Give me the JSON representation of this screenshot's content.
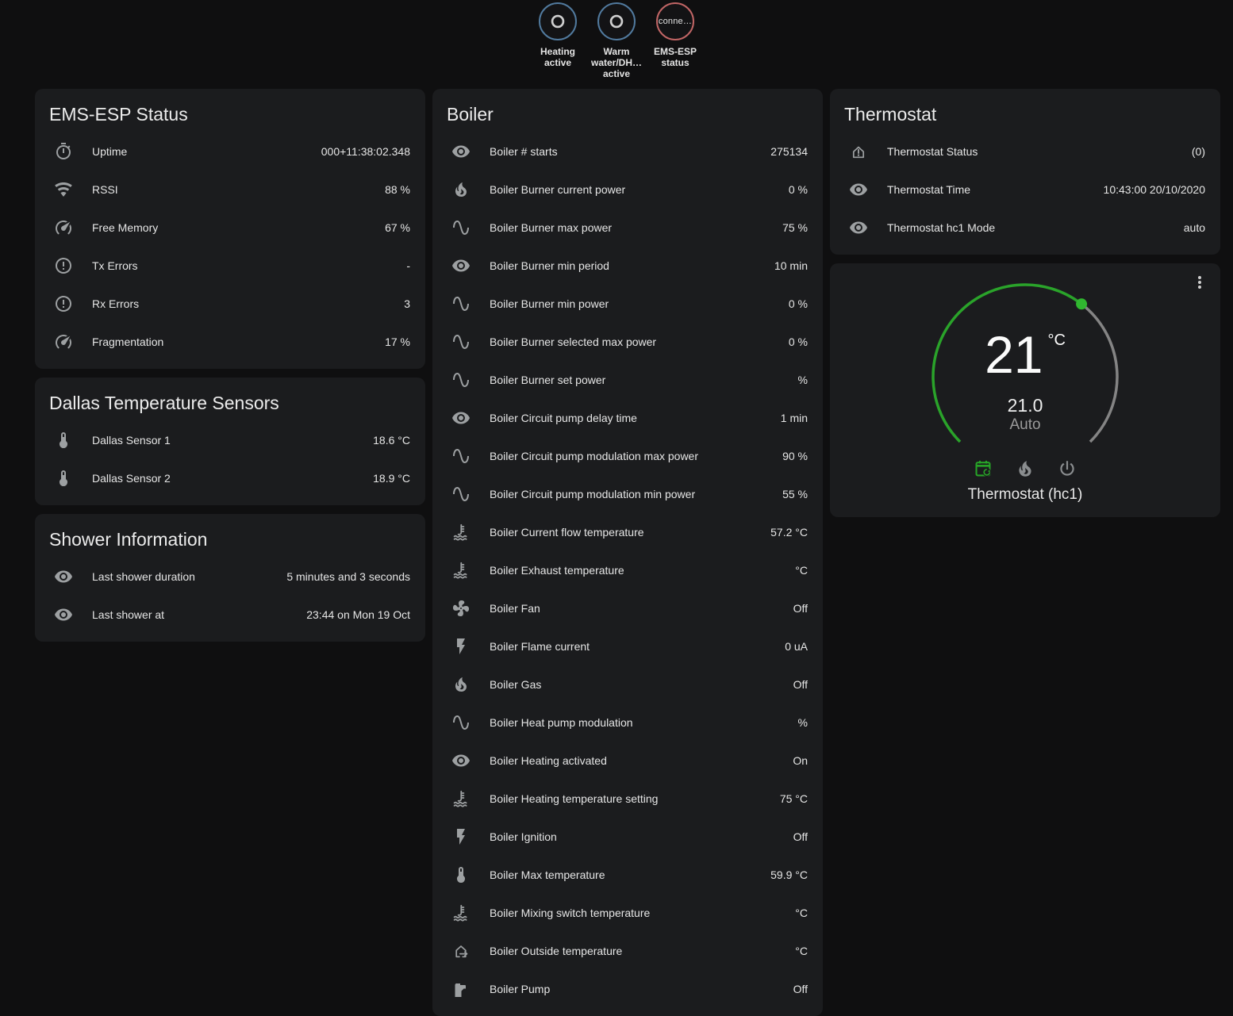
{
  "colors": {
    "badge_blue": "#517a9e",
    "badge_red": "#c06565",
    "arc_green": "#2aa32a",
    "handle_green": "#30b730",
    "track_gray": "#848484",
    "mode_active_green": "#27a427",
    "icon_gray": "#9da0a2"
  },
  "badges": [
    {
      "id": "heating-active",
      "icon": "ring",
      "border": "#517a9e",
      "label_lines": [
        "Heating",
        "active"
      ]
    },
    {
      "id": "warm-water-active",
      "icon": "ring",
      "border": "#517a9e",
      "label_lines": [
        "Warm",
        "water/DH…",
        "active"
      ]
    },
    {
      "id": "ems-esp-status",
      "text": "conne…",
      "border": "#c06565",
      "label_lines": [
        "EMS-ESP",
        "status"
      ]
    }
  ],
  "cards": {
    "ems": {
      "title": "EMS-ESP Status",
      "rows": [
        {
          "icon": "timer",
          "label": "Uptime",
          "value": "000+11:38:02.348"
        },
        {
          "icon": "wifi",
          "label": "RSSI",
          "value": "88 %"
        },
        {
          "icon": "gauge",
          "label": "Free Memory",
          "value": "67 %"
        },
        {
          "icon": "alert-circle",
          "label": "Tx Errors",
          "value": "-"
        },
        {
          "icon": "alert-circle",
          "label": "Rx Errors",
          "value": "3"
        },
        {
          "icon": "gauge",
          "label": "Fragmentation",
          "value": "17 %"
        }
      ]
    },
    "dallas": {
      "title": "Dallas Temperature Sensors",
      "rows": [
        {
          "icon": "thermometer",
          "label": "Dallas Sensor 1",
          "value": "18.6 °C"
        },
        {
          "icon": "thermometer",
          "label": "Dallas Sensor 2",
          "value": "18.9 °C"
        }
      ]
    },
    "shower": {
      "title": "Shower Information",
      "rows": [
        {
          "icon": "eye",
          "label": "Last shower duration",
          "value": "5 minutes and 3 seconds"
        },
        {
          "icon": "eye",
          "label": "Last shower at",
          "value": "23:44 on Mon 19 Oct"
        }
      ]
    },
    "boiler": {
      "title": "Boiler",
      "rows": [
        {
          "icon": "eye",
          "label": "Boiler # starts",
          "value": "275134"
        },
        {
          "icon": "fire",
          "label": "Boiler Burner current power",
          "value": "0 %"
        },
        {
          "icon": "sine-wave",
          "label": "Boiler Burner max power",
          "value": "75 %"
        },
        {
          "icon": "eye",
          "label": "Boiler Burner min period",
          "value": "10 min"
        },
        {
          "icon": "sine-wave",
          "label": "Boiler Burner min power",
          "value": "0 %"
        },
        {
          "icon": "sine-wave",
          "label": "Boiler Burner selected max power",
          "value": "0 %"
        },
        {
          "icon": "sine-wave",
          "label": "Boiler Burner set power",
          "value": "%"
        },
        {
          "icon": "eye",
          "label": "Boiler Circuit pump delay time",
          "value": "1 min"
        },
        {
          "icon": "sine-wave",
          "label": "Boiler Circuit pump modulation max power",
          "value": "90 %"
        },
        {
          "icon": "sine-wave",
          "label": "Boiler Circuit pump modulation min power",
          "value": "55 %"
        },
        {
          "icon": "coolant",
          "label": "Boiler Current flow temperature",
          "value": "57.2 °C"
        },
        {
          "icon": "coolant",
          "label": "Boiler Exhaust temperature",
          "value": "°C"
        },
        {
          "icon": "fan",
          "label": "Boiler Fan",
          "value": "Off"
        },
        {
          "icon": "flash",
          "label": "Boiler Flame current",
          "value": "0 uA"
        },
        {
          "icon": "fire",
          "label": "Boiler Gas",
          "value": "Off"
        },
        {
          "icon": "sine-wave",
          "label": "Boiler Heat pump modulation",
          "value": "%"
        },
        {
          "icon": "eye",
          "label": "Boiler Heating activated",
          "value": "On"
        },
        {
          "icon": "coolant",
          "label": "Boiler Heating temperature setting",
          "value": "75 °C"
        },
        {
          "icon": "flash",
          "label": "Boiler Ignition",
          "value": "Off"
        },
        {
          "icon": "thermometer",
          "label": "Boiler Max temperature",
          "value": "59.9 °C"
        },
        {
          "icon": "coolant",
          "label": "Boiler Mixing switch temperature",
          "value": "°C"
        },
        {
          "icon": "home-export",
          "label": "Boiler Outside temperature",
          "value": "°C"
        },
        {
          "icon": "pump",
          "label": "Boiler Pump",
          "value": "Off"
        }
      ]
    },
    "thermostat": {
      "title": "Thermostat",
      "rows": [
        {
          "icon": "home-alert",
          "label": "Thermostat Status",
          "value": "(0)"
        },
        {
          "icon": "eye",
          "label": "Thermostat Time",
          "value": "10:43:00 20/10/2020"
        },
        {
          "icon": "eye",
          "label": "Thermostat hc1 Mode",
          "value": "auto"
        }
      ]
    }
  },
  "dial": {
    "value": "21",
    "unit": "°C",
    "target": "21.0",
    "mode": "Auto",
    "label": "Thermostat (hc1)",
    "fraction": 0.64,
    "modes": [
      {
        "icon": "calendar-sync",
        "id": "auto",
        "active": true
      },
      {
        "icon": "fire",
        "id": "heat",
        "active": false
      },
      {
        "icon": "power",
        "id": "off",
        "active": false
      }
    ]
  }
}
